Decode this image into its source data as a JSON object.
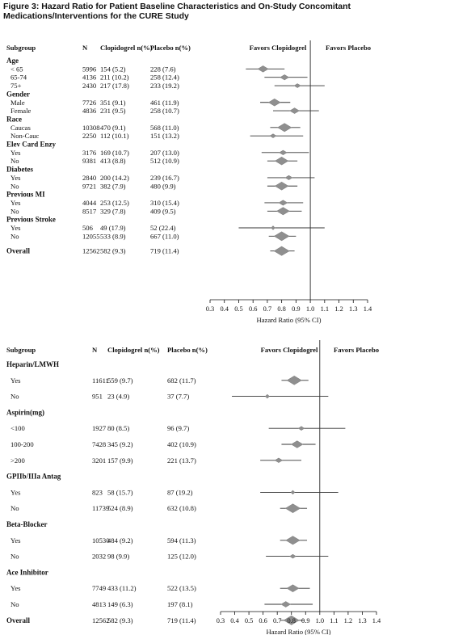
{
  "figure_title": "Figure 3:  Hazard Ratio for Patient Baseline Characteristics and On-Study Concomitant Medications/Interventions for the CURE Study",
  "chart_data": [
    {
      "type": "forest",
      "headers": {
        "subgroup": "Subgroup",
        "n": "N",
        "drug": "Clopidogrel n(%)",
        "placebo": "Placebo n(%)"
      },
      "favors_left": "Favors Clopidogrel",
      "favors_right": "Favors Placebo",
      "xlabel": "Hazard Ratio (95% CI)",
      "xlim": [
        0.3,
        1.4
      ],
      "ticks": [
        "0.3",
        "0.4",
        "0.5",
        "0.6",
        "0.7",
        "0.8",
        "0.9",
        "1.0",
        "1.1",
        "1.2",
        "1.3",
        "1.4"
      ],
      "reference_line": 1.0,
      "groups": [
        {
          "label": "Age",
          "rows": [
            {
              "label": "< 65",
              "n": "5996",
              "drug": "154 (5.2)",
              "placebo": "228 (7.6)",
              "hr": 0.67,
              "lo": 0.55,
              "hi": 0.82
            },
            {
              "label": "65-74",
              "n": "4136",
              "drug": "211 (10.2)",
              "placebo": "258 (12.4)",
              "hr": 0.82,
              "lo": 0.68,
              "hi": 0.98
            },
            {
              "label": "75+",
              "n": "2430",
              "drug": "217 (17.8)",
              "placebo": "233 (19.2)",
              "hr": 0.91,
              "lo": 0.75,
              "hi": 1.1
            }
          ]
        },
        {
          "label": "Gender",
          "rows": [
            {
              "label": "Male",
              "n": "7726",
              "drug": "351 (9.1)",
              "placebo": "461 (11.9)",
              "hr": 0.75,
              "lo": 0.65,
              "hi": 0.86
            },
            {
              "label": "Female",
              "n": "4836",
              "drug": "231 (9.5)",
              "placebo": "258 (10.7)",
              "hr": 0.89,
              "lo": 0.74,
              "hi": 1.06
            }
          ]
        },
        {
          "label": "Race",
          "rows": [
            {
              "label": "Caucas",
              "n": "10308",
              "drug": "470 (9.1)",
              "placebo": "568 (11.0)",
              "hr": 0.82,
              "lo": 0.72,
              "hi": 0.93
            },
            {
              "label": "Non-Cauc",
              "n": "2250",
              "drug": "112 (10.1)",
              "placebo": "151 (13.2)",
              "hr": 0.74,
              "lo": 0.58,
              "hi": 0.95
            }
          ]
        },
        {
          "label": "Elev Card Enzy",
          "rows": [
            {
              "label": "Yes",
              "n": "3176",
              "drug": "169 (10.7)",
              "placebo": "207 (13.0)",
              "hr": 0.81,
              "lo": 0.66,
              "hi": 0.99
            },
            {
              "label": "No",
              "n": "9381",
              "drug": "413 (8.8)",
              "placebo": "512 (10.9)",
              "hr": 0.8,
              "lo": 0.7,
              "hi": 0.91
            }
          ]
        },
        {
          "label": "Diabetes",
          "rows": [
            {
              "label": "Yes",
              "n": "2840",
              "drug": "200 (14.2)",
              "placebo": "239 (16.7)",
              "hr": 0.85,
              "lo": 0.7,
              "hi": 1.03
            },
            {
              "label": "No",
              "n": "9721",
              "drug": "382 (7.9)",
              "placebo": "480 (9.9)",
              "hr": 0.8,
              "lo": 0.7,
              "hi": 0.91
            }
          ]
        },
        {
          "label": "Previous MI",
          "rows": [
            {
              "label": "Yes",
              "n": "4044",
              "drug": "253 (12.5)",
              "placebo": "310 (15.4)",
              "hr": 0.81,
              "lo": 0.68,
              "hi": 0.95
            },
            {
              "label": "No",
              "n": "8517",
              "drug": "329 (7.8)",
              "placebo": "409 (9.5)",
              "hr": 0.81,
              "lo": 0.7,
              "hi": 0.94
            }
          ]
        },
        {
          "label": "Previous Stroke",
          "rows": [
            {
              "label": "Yes",
              "n": "506",
              "drug": "49 (17.9)",
              "placebo": "52 (22.4)",
              "hr": 0.74,
              "lo": 0.5,
              "hi": 1.1
            },
            {
              "label": "No",
              "n": "12055",
              "drug": "533 (8.9)",
              "placebo": "667 (11.0)",
              "hr": 0.8,
              "lo": 0.71,
              "hi": 0.9
            }
          ]
        }
      ],
      "overall": {
        "label": "Overall",
        "n": "12562",
        "drug": "582 (9.3)",
        "placebo": "719 (11.4)",
        "hr": 0.8,
        "lo": 0.72,
        "hi": 0.89
      }
    },
    {
      "type": "forest",
      "headers": {
        "subgroup": "Subgroup",
        "n": "N",
        "drug": "Clopidogrel n(%)",
        "placebo": "Placebo n(%)"
      },
      "favors_left": "Favors Clopidogrel",
      "favors_right": "Favors Placebo",
      "xlabel": "Hazard Ratio (95% CI)",
      "xlim": [
        0.3,
        1.4
      ],
      "ticks": [
        "0.3",
        "0.4",
        "0.5",
        "0.6",
        "0.7",
        "0.8",
        "0.9",
        "1.0",
        "1.1",
        "1.2",
        "1.3",
        "1.4"
      ],
      "reference_line": 1.0,
      "groups": [
        {
          "label": "Heparin/LMWH",
          "rows": [
            {
              "label": "Yes",
              "n": "11611",
              "drug": "559 (9.7)",
              "placebo": "682 (11.7)",
              "hr": 0.82,
              "lo": 0.73,
              "hi": 0.92
            },
            {
              "label": "No",
              "n": "951",
              "drug": "23 (4.9)",
              "placebo": "37 (7.7)",
              "hr": 0.63,
              "lo": 0.38,
              "hi": 1.06
            }
          ]
        },
        {
          "label": "Aspirin(mg)",
          "rows": [
            {
              "label": "<100",
              "n": "1927",
              "drug": "80 (8.5)",
              "placebo": "96 (9.7)",
              "hr": 0.87,
              "lo": 0.64,
              "hi": 1.18
            },
            {
              "label": "100-200",
              "n": "7428",
              "drug": "345 (9.2)",
              "placebo": "402 (10.9)",
              "hr": 0.84,
              "lo": 0.73,
              "hi": 0.97
            },
            {
              "label": ">200",
              "n": "3201",
              "drug": "157 (9.9)",
              "placebo": "221 (13.7)",
              "hr": 0.71,
              "lo": 0.58,
              "hi": 0.87
            }
          ]
        },
        {
          "label": "GPIIb/IIIa Antag",
          "rows": [
            {
              "label": "Yes",
              "n": "823",
              "drug": "58 (15.7)",
              "placebo": "87 (19.2)",
              "hr": 0.81,
              "lo": 0.58,
              "hi": 1.13
            },
            {
              "label": "No",
              "n": "11739",
              "drug": "524 (8.9)",
              "placebo": "632 (10.8)",
              "hr": 0.81,
              "lo": 0.72,
              "hi": 0.91
            }
          ]
        },
        {
          "label": "Beta-Blocker",
          "rows": [
            {
              "label": "Yes",
              "n": "10530",
              "drug": "484 (9.2)",
              "placebo": "594 (11.3)",
              "hr": 0.81,
              "lo": 0.72,
              "hi": 0.91
            },
            {
              "label": "No",
              "n": "2032",
              "drug": "98 (9.9)",
              "placebo": "125 (12.0)",
              "hr": 0.81,
              "lo": 0.62,
              "hi": 1.06
            }
          ]
        },
        {
          "label": "Ace Inhibitor",
          "rows": [
            {
              "label": "Yes",
              "n": "7749",
              "drug": "433 (11.2)",
              "placebo": "522 (13.5)",
              "hr": 0.81,
              "lo": 0.72,
              "hi": 0.93
            },
            {
              "label": "No",
              "n": "4813",
              "drug": "149 (6.3)",
              "placebo": "197 (8.1)",
              "hr": 0.76,
              "lo": 0.61,
              "hi": 0.95
            }
          ]
        }
      ],
      "overall": {
        "label": "Overall",
        "n": "12562",
        "drug": "582 (9.3)",
        "placebo": "719 (11.4)",
        "hr": 0.8,
        "lo": 0.72,
        "hi": 0.89
      }
    }
  ]
}
